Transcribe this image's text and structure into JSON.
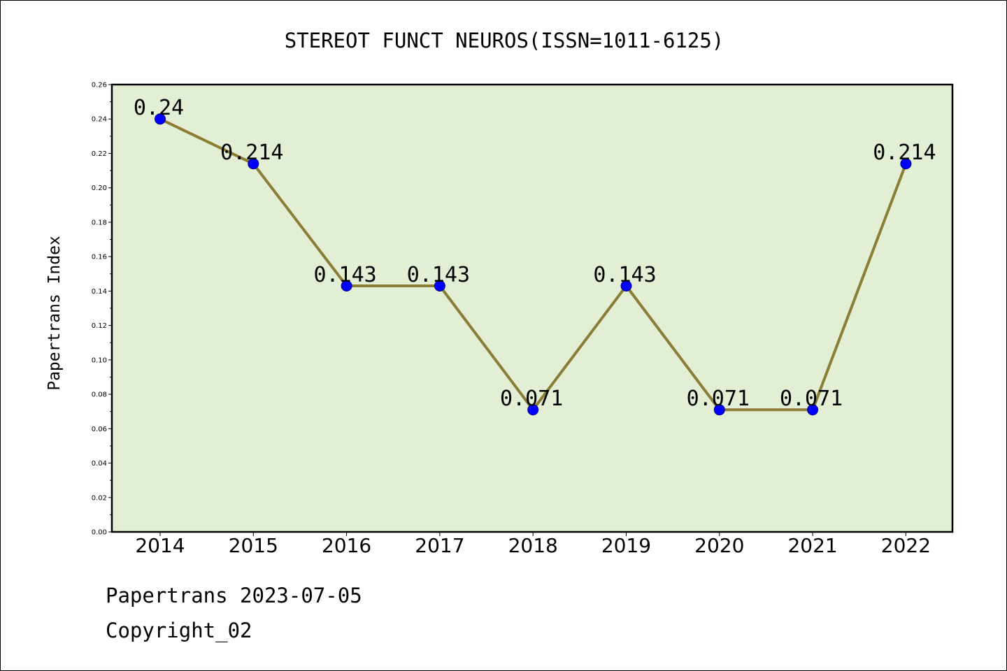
{
  "chart_data": {
    "type": "line",
    "title": "STEREOT FUNCT NEUROS(ISSN=1011-6125)",
    "xlabel": "",
    "ylabel": "Papertrans Index",
    "categories": [
      "2014",
      "2015",
      "2016",
      "2017",
      "2018",
      "2019",
      "2020",
      "2021",
      "2022"
    ],
    "series": [
      {
        "values": [
          0.24,
          0.214,
          0.143,
          0.143,
          0.071,
          0.143,
          0.071,
          0.071,
          0.214
        ],
        "data_labels": [
          "0.24",
          "0.214",
          "0.143",
          "0.143",
          "0.071",
          "0.143",
          "0.071",
          "0.071",
          "0.214"
        ],
        "line_color": "#8B7D35",
        "marker_color": "#0000FF"
      }
    ],
    "ylim": [
      0,
      0.26
    ],
    "yticks": [
      "0.00",
      "0.02",
      "0.04",
      "0.06",
      "0.08",
      "0.10",
      "0.12",
      "0.14",
      "0.16",
      "0.18",
      "0.20",
      "0.22",
      "0.24",
      "0.26"
    ],
    "grid": false,
    "plot_background": "#E2EFD4"
  },
  "footer": {
    "line1": "Papertrans 2023-07-05",
    "line2": "Copyright_02"
  }
}
